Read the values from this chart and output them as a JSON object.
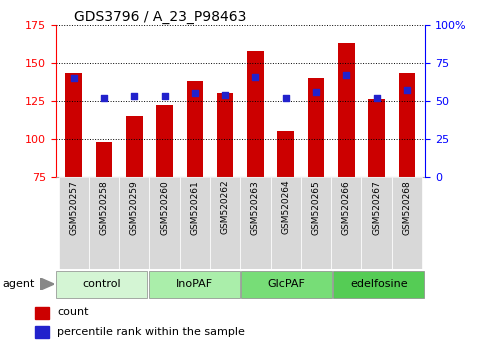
{
  "title": "GDS3796 / A_23_P98463",
  "samples": [
    "GSM520257",
    "GSM520258",
    "GSM520259",
    "GSM520260",
    "GSM520261",
    "GSM520262",
    "GSM520263",
    "GSM520264",
    "GSM520265",
    "GSM520266",
    "GSM520267",
    "GSM520268"
  ],
  "counts": [
    143,
    98,
    115,
    122,
    138,
    130,
    158,
    105,
    140,
    163,
    126,
    143
  ],
  "percentiles": [
    65,
    52,
    53,
    53,
    55,
    54,
    66,
    52,
    56,
    67,
    52,
    57
  ],
  "y_min": 75,
  "y_max": 175,
  "y_ticks": [
    75,
    100,
    125,
    150,
    175
  ],
  "y2_ticks": [
    0,
    25,
    50,
    75,
    100
  ],
  "y2_labels": [
    "0",
    "25",
    "50",
    "75",
    "100%"
  ],
  "bar_color": "#cc0000",
  "dot_color": "#2222cc",
  "groups": [
    {
      "label": "control",
      "start": 0,
      "end": 2,
      "color": "#d4f5d4"
    },
    {
      "label": "InoPAF",
      "start": 3,
      "end": 5,
      "color": "#aaeeaa"
    },
    {
      "label": "GlcPAF",
      "start": 6,
      "end": 8,
      "color": "#77dd77"
    },
    {
      "label": "edelfosine",
      "start": 9,
      "end": 11,
      "color": "#55cc55"
    }
  ],
  "legend_count_label": "count",
  "legend_pct_label": "percentile rank within the sample",
  "agent_label": "agent",
  "bar_width": 0.55,
  "xlabel_fontsize": 6.5,
  "title_fontsize": 10
}
